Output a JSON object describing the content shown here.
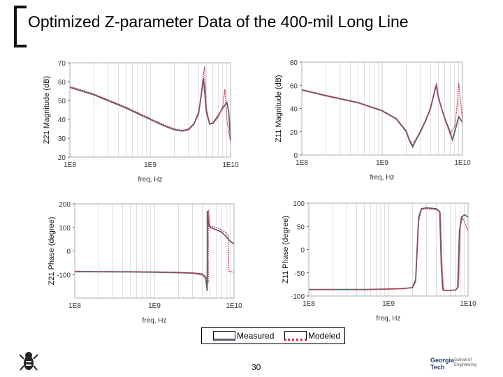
{
  "page": {
    "title": "Optimized Z-parameter Data of the 400-mil Long Line",
    "page_number": "30",
    "logo": {
      "line1": "Georgia",
      "line2": "Tech",
      "dept1": "School of",
      "dept2": "Engineering"
    }
  },
  "colors": {
    "measured": "#5a6470",
    "modeled": "#d0303c",
    "grid": "#c8c8c8"
  },
  "legend": {
    "measured": "Measured",
    "modeled": "Modeled"
  },
  "chart_data": [
    {
      "id": "z21-mag",
      "type": "line",
      "ylabel": "Z21 Magnitude (dB)",
      "xlabel": "freq, Hz",
      "xscale": "log",
      "xlim": [
        100000000.0,
        10000000000.0
      ],
      "ylim": [
        20,
        70
      ],
      "yticks": [
        "20",
        "30",
        "40",
        "50",
        "60",
        "70"
      ],
      "xticks": [
        "1E8",
        "1E9",
        "1E10"
      ],
      "series": [
        {
          "name": "Measured",
          "x": [
            100000000.0,
            200000000.0,
            500000000.0,
            1000000000.0,
            1500000000.0,
            2000000000.0,
            2500000000.0,
            3000000000.0,
            3500000000.0,
            4000000000.0,
            4300000000.0,
            4600000000.0,
            5000000000.0,
            5500000000.0,
            6000000000.0,
            7000000000.0,
            8000000000.0,
            9000000000.0,
            9500000000.0,
            10000000000.0
          ],
          "y": [
            57,
            53,
            46,
            40,
            36.5,
            34.5,
            33.8,
            34.5,
            37.5,
            43,
            52,
            62,
            44,
            37.5,
            38,
            42,
            46,
            49,
            44,
            29
          ]
        },
        {
          "name": "Modeled",
          "x": [
            100000000.0,
            200000000.0,
            500000000.0,
            1000000000.0,
            1500000000.0,
            2000000000.0,
            2500000000.0,
            3000000000.0,
            3500000000.0,
            4000000000.0,
            4300000000.0,
            4600000000.0,
            4750000000.0,
            5000000000.0,
            5500000000.0,
            6000000000.0,
            7000000000.0,
            8000000000.0,
            8500000000.0,
            9000000000.0,
            9500000000.0,
            10000000000.0
          ],
          "y": [
            57.5,
            53.5,
            46.5,
            40.5,
            37,
            35,
            34.2,
            35,
            38,
            44,
            53,
            64,
            68,
            46,
            38,
            37.5,
            41,
            47,
            56,
            40,
            33,
            28
          ]
        }
      ]
    },
    {
      "id": "z11-mag",
      "type": "line",
      "ylabel": "Z11 Magnitude (dB)",
      "xlabel": "freq, Hz",
      "xscale": "log",
      "xlim": [
        100000000.0,
        10000000000.0
      ],
      "ylim": [
        0,
        80
      ],
      "yticks": [
        "0",
        "20",
        "40",
        "60",
        "80"
      ],
      "xticks": [
        "1E8",
        "1E9",
        "1E10"
      ],
      "series": [
        {
          "name": "Measured",
          "x": [
            100000000.0,
            200000000.0,
            500000000.0,
            1000000000.0,
            1500000000.0,
            2000000000.0,
            2200000000.0,
            2400000000.0,
            2600000000.0,
            3000000000.0,
            3500000000.0,
            4000000000.0,
            4400000000.0,
            4700000000.0,
            5000000000.0,
            5500000000.0,
            6000000000.0,
            7000000000.0,
            7500000000.0,
            8000000000.0,
            9000000000.0,
            10000000000.0
          ],
          "y": [
            56,
            51,
            45,
            38,
            31,
            20,
            12,
            7,
            12,
            20,
            30,
            40,
            52,
            60,
            50,
            40,
            32,
            20,
            13,
            20,
            33,
            28
          ]
        },
        {
          "name": "Modeled",
          "x": [
            100000000.0,
            200000000.0,
            500000000.0,
            1000000000.0,
            1500000000.0,
            2000000000.0,
            2200000000.0,
            2400000000.0,
            2600000000.0,
            3000000000.0,
            3500000000.0,
            4000000000.0,
            4400000000.0,
            4750000000.0,
            5000000000.0,
            5500000000.0,
            6000000000.0,
            7000000000.0,
            8000000000.0,
            8500000000.0,
            9000000000.0,
            9500000000.0,
            10000000000.0
          ],
          "y": [
            56.5,
            51.5,
            45.5,
            38.5,
            31.5,
            21,
            13,
            9,
            13,
            21,
            31,
            41,
            53,
            62,
            51,
            40,
            31,
            18,
            25,
            40,
            62,
            45,
            30
          ]
        }
      ]
    },
    {
      "id": "z21-phase",
      "type": "line",
      "ylabel": "Z21 Phase (degree)",
      "xlabel": "freq, Hz",
      "xscale": "log",
      "xlim": [
        100000000.0,
        10000000000.0
      ],
      "ylim": [
        -200,
        200
      ],
      "yticks": [
        "-100",
        "0",
        "100",
        "200"
      ],
      "xticks": [
        "1E8",
        "1E9",
        "1E10"
      ],
      "series": [
        {
          "name": "Measured",
          "x": [
            100000000.0,
            500000000.0,
            1000000000.0,
            2000000000.0,
            3000000000.0,
            4000000000.0,
            4400000000.0,
            4600000000.0,
            4610000000.0,
            4800000000.0,
            5000000000.0,
            6000000000.0,
            7000000000.0,
            8000000000.0,
            9000000000.0,
            10000000000.0
          ],
          "y": [
            -88,
            -89,
            -90,
            -92,
            -94,
            -100,
            -115,
            -170,
            170,
            110,
            100,
            90,
            80,
            60,
            40,
            30
          ]
        },
        {
          "name": "Modeled",
          "x": [
            100000000.0,
            500000000.0,
            1000000000.0,
            2000000000.0,
            3000000000.0,
            4000000000.0,
            4400000000.0,
            4600000000.0,
            4750000000.0,
            4760000000.0,
            5000000000.0,
            6000000000.0,
            7000000000.0,
            8000000000.0,
            8500000000.0,
            8600000000.0,
            9000000000.0,
            10000000000.0
          ],
          "y": [
            -86,
            -87,
            -88,
            -90,
            -92,
            -96,
            -106,
            -125,
            -135,
            175,
            105,
            100,
            90,
            75,
            60,
            -85,
            -88,
            -90
          ]
        }
      ]
    },
    {
      "id": "z11-phase",
      "type": "line",
      "ylabel": "Z11 Phase (degree)",
      "xlabel": "freq, Hz",
      "xscale": "log",
      "xlim": [
        100000000.0,
        10000000000.0
      ],
      "ylim": [
        -100,
        100
      ],
      "yticks": [
        "-100",
        "-50",
        "0",
        "50",
        "100"
      ],
      "xticks": [
        "1E8",
        "1E9",
        "1E10"
      ],
      "series": [
        {
          "name": "Measured",
          "x": [
            100000000.0,
            500000000.0,
            1000000000.0,
            1500000000.0,
            2000000000.0,
            2200000000.0,
            2400000000.0,
            2600000000.0,
            3000000000.0,
            4000000000.0,
            4400000000.0,
            4600000000.0,
            4800000000.0,
            5000000000.0,
            6000000000.0,
            7000000000.0,
            7400000000.0,
            7800000000.0,
            8300000000.0,
            9000000000.0,
            10000000000.0
          ],
          "y": [
            -86,
            -86,
            -85,
            -84,
            -82,
            -65,
            70,
            88,
            90,
            88,
            82,
            -30,
            -86,
            -88,
            -88,
            -87,
            -82,
            40,
            70,
            75,
            70
          ]
        },
        {
          "name": "Modeled",
          "x": [
            100000000.0,
            500000000.0,
            1000000000.0,
            1500000000.0,
            2000000000.0,
            2200000000.0,
            2400000000.0,
            2600000000.0,
            3000000000.0,
            4000000000.0,
            4500000000.0,
            4700000000.0,
            4900000000.0,
            5100000000.0,
            6000000000.0,
            7000000000.0,
            7600000000.0,
            8000000000.0,
            8500000000.0,
            9000000000.0,
            10000000000.0
          ],
          "y": [
            -86,
            -86,
            -85,
            -84,
            -82,
            -70,
            60,
            86,
            88,
            86,
            80,
            -30,
            -85,
            -88,
            -88,
            -87,
            -80,
            50,
            68,
            60,
            40
          ]
        }
      ]
    }
  ]
}
